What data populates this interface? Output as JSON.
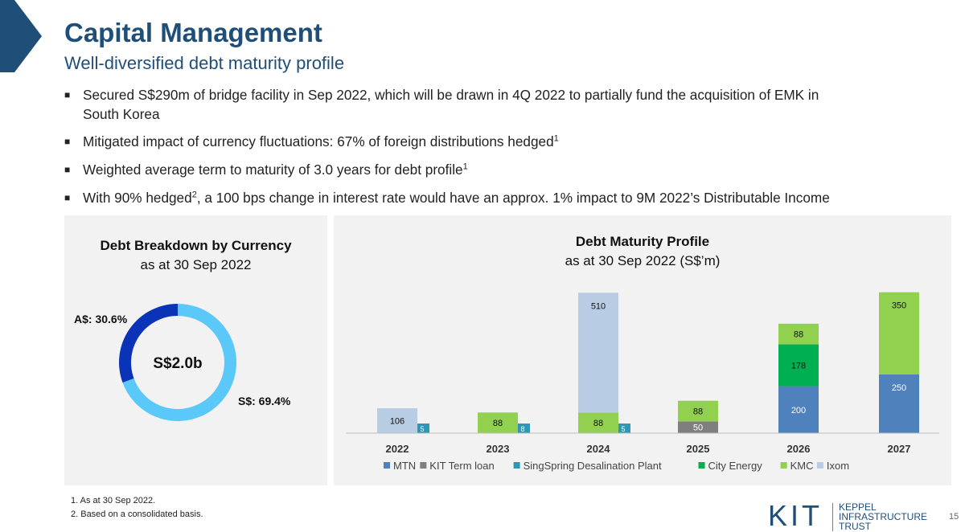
{
  "header": {
    "title": "Capital Management",
    "subtitle": "Well-diversified debt maturity profile"
  },
  "bullets": [
    {
      "text": "Secured S$290m of bridge facility in Sep 2022, which will be drawn in 4Q 2022 to partially fund the acquisition of EMK in",
      "text2": "South Korea"
    },
    {
      "text": "Mitigated impact of currency fluctuations: 67% of foreign distributions hedged",
      "sup": "1"
    },
    {
      "text": "Weighted average term to maturity of 3.0 years for debt profile",
      "sup": "1"
    },
    {
      "text_a": "With 90% hedged",
      "sup": "2",
      "text_b": ", a 100 bps change in interest rate would have an approx. 1% impact to 9M 2022’s Distributable Income"
    }
  ],
  "donut": {
    "title": "Debt Breakdown by Currency",
    "subtitle": "as at 30 Sep 2022",
    "center_label": "S$2.0b",
    "chart_data": {
      "type": "pie",
      "slices": [
        {
          "label": "A$: 30.6%",
          "value": 30.6,
          "color": "#0b33b8"
        },
        {
          "label": "S$: 69.4%",
          "value": 69.4,
          "color": "#5bc8fa"
        }
      ]
    }
  },
  "maturity": {
    "title": "Debt Maturity Profile",
    "subtitle": "as at 30 Sep 2022 (S$’m)"
  },
  "chart_data": {
    "type": "bar",
    "stacked": true,
    "categories": [
      "2022",
      "2023",
      "2024",
      "2025",
      "2026",
      "2027"
    ],
    "ylim": [
      0,
      600
    ],
    "series": [
      {
        "name": "MTN",
        "color": "#4f81bd",
        "values": [
          0,
          0,
          0,
          0,
          200,
          250
        ]
      },
      {
        "name": "KIT Term loan",
        "color": "#7f7f7f",
        "values": [
          0,
          0,
          0,
          50,
          0,
          0
        ]
      },
      {
        "name": "SingSpring Desalination Plant",
        "color": "#2e97b6",
        "values": [
          5,
          8,
          5,
          0,
          0,
          0
        ]
      },
      {
        "name": "City Energy",
        "color": "#00b050",
        "values": [
          0,
          0,
          0,
          0,
          178,
          0
        ]
      },
      {
        "name": "KMC",
        "color": "#92d050",
        "values": [
          0,
          88,
          88,
          88,
          88,
          350
        ]
      },
      {
        "name": "Ixom",
        "color": "#b8cce4",
        "values": [
          106,
          0,
          510,
          0,
          0,
          0
        ]
      }
    ]
  },
  "footnotes": [
    "1. As at 30 Sep 2022.",
    "2. Based on a consolidated basis."
  ],
  "logo": {
    "mark": "KIT",
    "line1": "KEPPEL",
    "line2": "INFRASTRUCTURE",
    "line3": "TRUST"
  },
  "page_number": "15"
}
